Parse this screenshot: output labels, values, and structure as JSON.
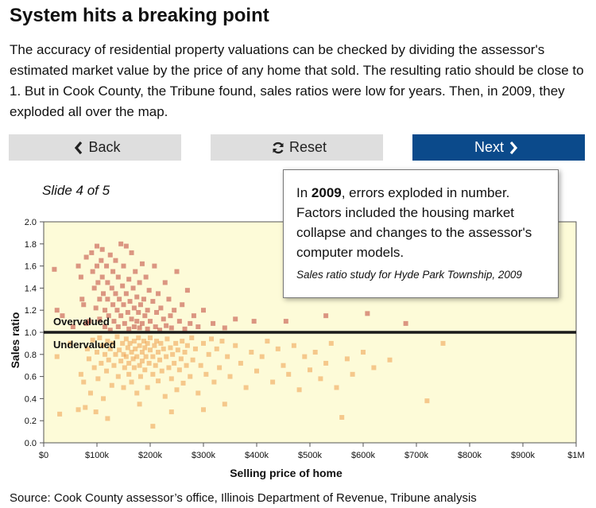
{
  "header": {
    "title": "System hits a breaking point",
    "intro": "The accuracy of residential property valuations can be checked by dividing the assessor's estimated market value by the price of any home that sold. The resulting ratio should be close to 1. But in Cook County, the Tribune found, sales ratios were low for years. Then, in 2009, they exploded all over the map."
  },
  "nav": {
    "back_label": "Back",
    "reset_label": "Reset",
    "next_label": "Next",
    "back_icon": "chevron-left-icon",
    "reset_icon": "refresh-icon",
    "next_icon": "chevron-right-icon",
    "next_color": "#0b4a8b",
    "button_color": "#dedede"
  },
  "slide": {
    "label": "Slide 4 of 5"
  },
  "tooltip": {
    "prefix": "In ",
    "year": "2009",
    "text": ", errors exploded in number. Factors included the housing market collapse and changes to the assessor's computer models.",
    "caption": "Sales ratio study for Hyde Park Township, 2009"
  },
  "source": "Source: Cook County assessor’s office, Illinois Department of Revenue, Tribune analysis",
  "chart_data": {
    "type": "scatter",
    "xlabel": "Selling price of home",
    "ylabel": "Sales ratio",
    "xlim": [
      0,
      1000000
    ],
    "ylim": [
      0,
      2.0
    ],
    "x_ticks": [
      0,
      100000,
      200000,
      300000,
      400000,
      500000,
      600000,
      700000,
      800000,
      900000,
      1000000
    ],
    "x_tick_labels": [
      "$0",
      "$100k",
      "$200k",
      "$300k",
      "$400k",
      "$500k",
      "$600k",
      "$700k",
      "$800k",
      "$900k",
      "$1M"
    ],
    "y_ticks": [
      0,
      0.2,
      0.4,
      0.6,
      0.8,
      1.0,
      1.2,
      1.4,
      1.6,
      1.8,
      2.0
    ],
    "y_tick_labels": [
      "0.0",
      "0.2",
      "0.4",
      "0.6",
      "0.8",
      "1.0",
      "1.2",
      "1.4",
      "1.6",
      "1.8",
      "2.0"
    ],
    "reference_line": 1.0,
    "annotations": {
      "above": "Overvalued",
      "below": "Undervalued"
    },
    "background": "#fdfbd8",
    "colors": {
      "over": "#c0433a",
      "under": "#ef9e4c",
      "reference": "#1a1a1a"
    },
    "grid": false,
    "series": [
      {
        "category": "over",
        "points": [
          [
            20000,
            1.57
          ],
          [
            25000,
            1.2
          ],
          [
            35000,
            1.15
          ],
          [
            55000,
            1.05
          ],
          [
            65000,
            1.6
          ],
          [
            70000,
            1.5
          ],
          [
            72000,
            1.3
          ],
          [
            75000,
            1.25
          ],
          [
            80000,
            1.68
          ],
          [
            80000,
            1.08
          ],
          [
            85000,
            1.1
          ],
          [
            90000,
            1.72
          ],
          [
            92000,
            1.55
          ],
          [
            95000,
            1.4
          ],
          [
            98000,
            1.22
          ],
          [
            100000,
            1.78
          ],
          [
            100000,
            1.6
          ],
          [
            102000,
            1.45
          ],
          [
            105000,
            1.3
          ],
          [
            105000,
            1.12
          ],
          [
            108000,
            1.65
          ],
          [
            110000,
            1.75
          ],
          [
            110000,
            1.5
          ],
          [
            112000,
            1.35
          ],
          [
            115000,
            1.2
          ],
          [
            115000,
            1.05
          ],
          [
            118000,
            1.6
          ],
          [
            120000,
            1.45
          ],
          [
            120000,
            1.3
          ],
          [
            122000,
            1.15
          ],
          [
            125000,
            1.7
          ],
          [
            125000,
            1.02
          ],
          [
            128000,
            1.4
          ],
          [
            130000,
            1.55
          ],
          [
            130000,
            1.25
          ],
          [
            132000,
            1.1
          ],
          [
            135000,
            1.65
          ],
          [
            135000,
            1.35
          ],
          [
            138000,
            1.2
          ],
          [
            140000,
            1.5
          ],
          [
            140000,
            1.05
          ],
          [
            142000,
            1.3
          ],
          [
            145000,
            1.8
          ],
          [
            145000,
            1.15
          ],
          [
            148000,
            1.42
          ],
          [
            150000,
            1.6
          ],
          [
            150000,
            1.25
          ],
          [
            152000,
            1.08
          ],
          [
            155000,
            1.78
          ],
          [
            155000,
            1.35
          ],
          [
            158000,
            1.18
          ],
          [
            160000,
            1.48
          ],
          [
            160000,
            1.03
          ],
          [
            162000,
            1.28
          ],
          [
            165000,
            1.72
          ],
          [
            165000,
            1.12
          ],
          [
            168000,
            1.4
          ],
          [
            170000,
            1.22
          ],
          [
            170000,
            1.05
          ],
          [
            172000,
            1.55
          ],
          [
            175000,
            1.32
          ],
          [
            175000,
            1.1
          ],
          [
            178000,
            1.18
          ],
          [
            180000,
            1.45
          ],
          [
            180000,
            1.04
          ],
          [
            182000,
            1.25
          ],
          [
            185000,
            1.62
          ],
          [
            185000,
            1.08
          ],
          [
            188000,
            1.3
          ],
          [
            190000,
            1.15
          ],
          [
            192000,
            1.5
          ],
          [
            195000,
            1.2
          ],
          [
            195000,
            1.03
          ],
          [
            198000,
            1.38
          ],
          [
            200000,
            1.1
          ],
          [
            205000,
            1.28
          ],
          [
            208000,
            1.6
          ],
          [
            210000,
            1.05
          ],
          [
            212000,
            1.18
          ],
          [
            215000,
            1.35
          ],
          [
            218000,
            1.02
          ],
          [
            220000,
            1.22
          ],
          [
            225000,
            1.12
          ],
          [
            228000,
            1.45
          ],
          [
            230000,
            1.06
          ],
          [
            235000,
            1.3
          ],
          [
            238000,
            1.15
          ],
          [
            240000,
            1.04
          ],
          [
            245000,
            1.2
          ],
          [
            250000,
            1.55
          ],
          [
            255000,
            1.1
          ],
          [
            260000,
            1.25
          ],
          [
            265000,
            1.03
          ],
          [
            270000,
            1.38
          ],
          [
            275000,
            1.08
          ],
          [
            282000,
            1.15
          ],
          [
            290000,
            1.05
          ],
          [
            300000,
            1.2
          ],
          [
            318000,
            1.08
          ],
          [
            340000,
            1.04
          ],
          [
            360000,
            1.12
          ],
          [
            395000,
            1.1
          ],
          [
            455000,
            1.1
          ],
          [
            530000,
            1.15
          ],
          [
            608000,
            1.17
          ],
          [
            680000,
            1.08
          ]
        ]
      },
      {
        "category": "under",
        "points": [
          [
            25000,
            0.78
          ],
          [
            30000,
            0.26
          ],
          [
            50000,
            0.9
          ],
          [
            65000,
            0.3
          ],
          [
            70000,
            0.62
          ],
          [
            75000,
            0.55
          ],
          [
            78000,
            0.32
          ],
          [
            82000,
            0.85
          ],
          [
            85000,
            0.76
          ],
          [
            88000,
            0.45
          ],
          [
            92000,
            0.93
          ],
          [
            95000,
            0.68
          ],
          [
            98000,
            0.28
          ],
          [
            100000,
            0.82
          ],
          [
            102000,
            0.58
          ],
          [
            105000,
            0.95
          ],
          [
            108000,
            0.72
          ],
          [
            110000,
            0.88
          ],
          [
            112000,
            0.4
          ],
          [
            115000,
            0.8
          ],
          [
            118000,
            0.65
          ],
          [
            120000,
            0.92
          ],
          [
            122000,
            0.75
          ],
          [
            125000,
            0.85
          ],
          [
            128000,
            0.52
          ],
          [
            130000,
            0.9
          ],
          [
            132000,
            0.7
          ],
          [
            135000,
            0.8
          ],
          [
            138000,
            0.96
          ],
          [
            140000,
            0.6
          ],
          [
            142000,
            0.84
          ],
          [
            145000,
            0.74
          ],
          [
            148000,
            0.9
          ],
          [
            150000,
            0.5
          ],
          [
            150000,
            0.8
          ],
          [
            152000,
            0.68
          ],
          [
            155000,
            0.94
          ],
          [
            155000,
            0.78
          ],
          [
            158000,
            0.86
          ],
          [
            160000,
            0.62
          ],
          [
            160000,
            0.72
          ],
          [
            162000,
            0.9
          ],
          [
            165000,
            0.82
          ],
          [
            165000,
            0.55
          ],
          [
            168000,
            0.76
          ],
          [
            170000,
            0.92
          ],
          [
            170000,
            0.68
          ],
          [
            172000,
            0.85
          ],
          [
            175000,
            0.78
          ],
          [
            175000,
            0.45
          ],
          [
            178000,
            0.95
          ],
          [
            180000,
            0.7
          ],
          [
            180000,
            0.88
          ],
          [
            182000,
            0.6
          ],
          [
            185000,
            0.82
          ],
          [
            185000,
            0.74
          ],
          [
            188000,
            0.92
          ],
          [
            190000,
            0.66
          ],
          [
            190000,
            0.86
          ],
          [
            192000,
            0.78
          ],
          [
            195000,
            0.5
          ],
          [
            195000,
            0.9
          ],
          [
            198000,
            0.72
          ],
          [
            200000,
            0.84
          ],
          [
            200000,
            0.95
          ],
          [
            205000,
            0.62
          ],
          [
            205000,
            0.78
          ],
          [
            208000,
            0.88
          ],
          [
            210000,
            0.7
          ],
          [
            212000,
            0.92
          ],
          [
            215000,
            0.56
          ],
          [
            215000,
            0.82
          ],
          [
            218000,
            0.75
          ],
          [
            220000,
            0.9
          ],
          [
            222000,
            0.65
          ],
          [
            225000,
            0.85
          ],
          [
            228000,
            0.42
          ],
          [
            230000,
            0.78
          ],
          [
            232000,
            0.94
          ],
          [
            235000,
            0.68
          ],
          [
            238000,
            0.86
          ],
          [
            240000,
            0.58
          ],
          [
            242000,
            0.8
          ],
          [
            245000,
            0.72
          ],
          [
            248000,
            0.9
          ],
          [
            250000,
            0.48
          ],
          [
            252000,
            0.84
          ],
          [
            255000,
            0.66
          ],
          [
            258000,
            0.76
          ],
          [
            260000,
            0.92
          ],
          [
            262000,
            0.54
          ],
          [
            265000,
            0.82
          ],
          [
            268000,
            0.7
          ],
          [
            270000,
            0.88
          ],
          [
            275000,
            0.6
          ],
          [
            278000,
            0.95
          ],
          [
            280000,
            0.75
          ],
          [
            285000,
            0.85
          ],
          [
            290000,
            0.45
          ],
          [
            295000,
            0.7
          ],
          [
            300000,
            0.9
          ],
          [
            305000,
            0.62
          ],
          [
            310000,
            0.8
          ],
          [
            315000,
            0.94
          ],
          [
            320000,
            0.55
          ],
          [
            325000,
            0.85
          ],
          [
            330000,
            0.68
          ],
          [
            335000,
            0.92
          ],
          [
            340000,
            0.35
          ],
          [
            345000,
            0.78
          ],
          [
            350000,
            0.6
          ],
          [
            360000,
            0.88
          ],
          [
            370000,
            0.72
          ],
          [
            380000,
            0.5
          ],
          [
            390000,
            0.82
          ],
          [
            400000,
            0.65
          ],
          [
            410000,
            0.78
          ],
          [
            420000,
            0.92
          ],
          [
            430000,
            0.55
          ],
          [
            440000,
            0.85
          ],
          [
            450000,
            0.7
          ],
          [
            460000,
            0.62
          ],
          [
            470000,
            0.88
          ],
          [
            480000,
            0.48
          ],
          [
            490000,
            0.78
          ],
          [
            500000,
            0.66
          ],
          [
            510000,
            0.82
          ],
          [
            520000,
            0.58
          ],
          [
            530000,
            0.72
          ],
          [
            540000,
            0.9
          ],
          [
            550000,
            0.5
          ],
          [
            560000,
            0.23
          ],
          [
            570000,
            0.76
          ],
          [
            580000,
            0.62
          ],
          [
            600000,
            0.82
          ],
          [
            620000,
            0.68
          ],
          [
            650000,
            0.75
          ],
          [
            720000,
            0.38
          ],
          [
            750000,
            0.9
          ],
          [
            205000,
            0.15
          ],
          [
            240000,
            0.28
          ],
          [
            120000,
            0.22
          ],
          [
            180000,
            0.35
          ],
          [
            300000,
            0.3
          ]
        ]
      }
    ]
  }
}
